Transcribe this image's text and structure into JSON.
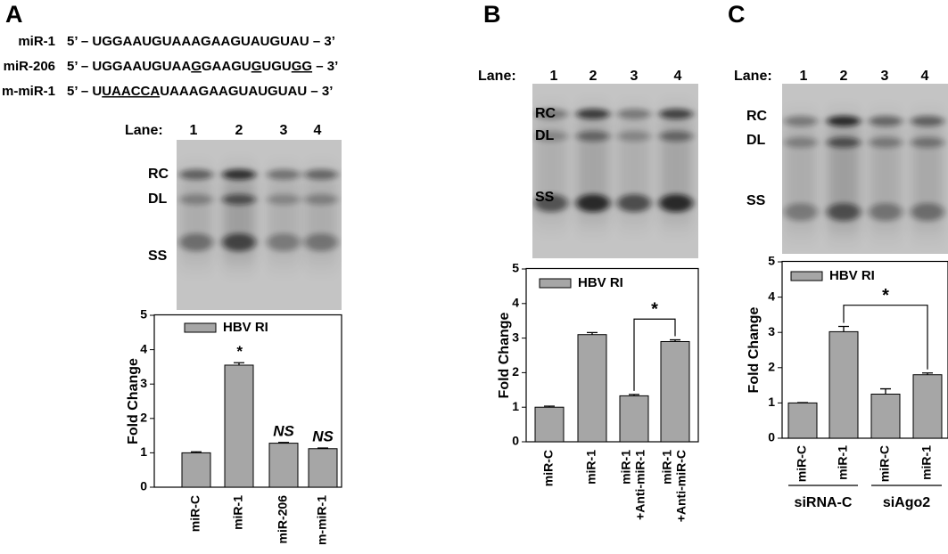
{
  "panels": [
    {
      "label": "A",
      "sequences": [
        {
          "name": "miR-1",
          "segments": [
            {
              "text": "5’ – UGGAAUGUAAAGAAGUAUGUAU – 3’"
            }
          ]
        },
        {
          "name": "miR-206",
          "segments": [
            {
              "text": "5’ – UGGAAUGUAA"
            },
            {
              "text": "G",
              "underline": true
            },
            {
              "text": "GAAGU"
            },
            {
              "text": "G",
              "underline": true
            },
            {
              "text": "UGU"
            },
            {
              "text": "GG",
              "underline": true
            },
            {
              "text": " – 3’"
            }
          ]
        },
        {
          "name": "m-miR-1",
          "segments": [
            {
              "text": "5’ – U"
            },
            {
              "text": "UAACCA",
              "underline": true
            },
            {
              "text": "UAAAGAAGUAUGUAU – 3’"
            }
          ]
        }
      ],
      "blot": {
        "lane_title": "Lane:",
        "lanes": [
          "1",
          "2",
          "3",
          "4"
        ],
        "bands": [
          "RC",
          "DL",
          "SS"
        ]
      }
    },
    {
      "label": "B",
      "blot": {
        "lane_title": "Lane:",
        "lanes": [
          "1",
          "2",
          "3",
          "4"
        ],
        "bands": [
          "RC",
          "DL",
          "SS"
        ]
      }
    },
    {
      "label": "C",
      "blot": {
        "lane_title": "Lane:",
        "lanes": [
          "1",
          "2",
          "3",
          "4"
        ],
        "bands": [
          "RC",
          "DL",
          "SS"
        ]
      }
    }
  ],
  "chart_data": [
    {
      "type": "bar",
      "y_label": "Fold Change",
      "categories": [
        [
          "miR-C"
        ],
        [
          "miR-1"
        ],
        [
          "miR-206"
        ],
        [
          "m-miR-1"
        ]
      ],
      "series": [
        {
          "name": "HBV RI",
          "color": "#a6a6a6",
          "values": [
            1.0,
            3.55,
            1.28,
            1.12
          ],
          "errors": [
            0.03,
            0.07,
            0.02,
            0.02
          ]
        }
      ],
      "bar_annotations": [
        null,
        "*",
        "NS",
        "NS"
      ],
      "ylim": [
        0,
        5
      ],
      "yticks": [
        0,
        1,
        2,
        3,
        4,
        5
      ]
    },
    {
      "type": "bar",
      "y_label": "Fold Change",
      "categories": [
        [
          "miR-C"
        ],
        [
          "miR-1"
        ],
        [
          "miR-1",
          "+Anti-miR-1"
        ],
        [
          "miR-1",
          "+Anti-miR-C"
        ]
      ],
      "series": [
        {
          "name": "HBV RI",
          "color": "#a6a6a6",
          "values": [
            1.0,
            3.1,
            1.33,
            2.9
          ],
          "errors": [
            0.03,
            0.06,
            0.04,
            0.05
          ]
        }
      ],
      "significance": {
        "between": [
          2,
          3
        ],
        "label": "*"
      },
      "ylim": [
        0,
        5
      ],
      "yticks": [
        0,
        1,
        2,
        3,
        4,
        5
      ]
    },
    {
      "type": "bar",
      "y_label": "Fold Change",
      "categories": [
        [
          "miR-C"
        ],
        [
          "miR-1"
        ],
        [
          "miR-C"
        ],
        [
          "miR-1"
        ]
      ],
      "series": [
        {
          "name": "HBV RI",
          "color": "#a6a6a6",
          "values": [
            1.0,
            3.02,
            1.25,
            1.8
          ],
          "errors": [
            0.01,
            0.15,
            0.15,
            0.05
          ]
        }
      ],
      "significance": {
        "between": [
          1,
          3
        ],
        "label": "*"
      },
      "groups": [
        {
          "label": "siRNA-C",
          "categories": [
            0,
            1
          ]
        },
        {
          "label": "siAgo2",
          "categories": [
            2,
            3
          ]
        }
      ],
      "ylim": [
        0,
        5
      ],
      "yticks": [
        0,
        1,
        2,
        3,
        4,
        5
      ]
    }
  ]
}
